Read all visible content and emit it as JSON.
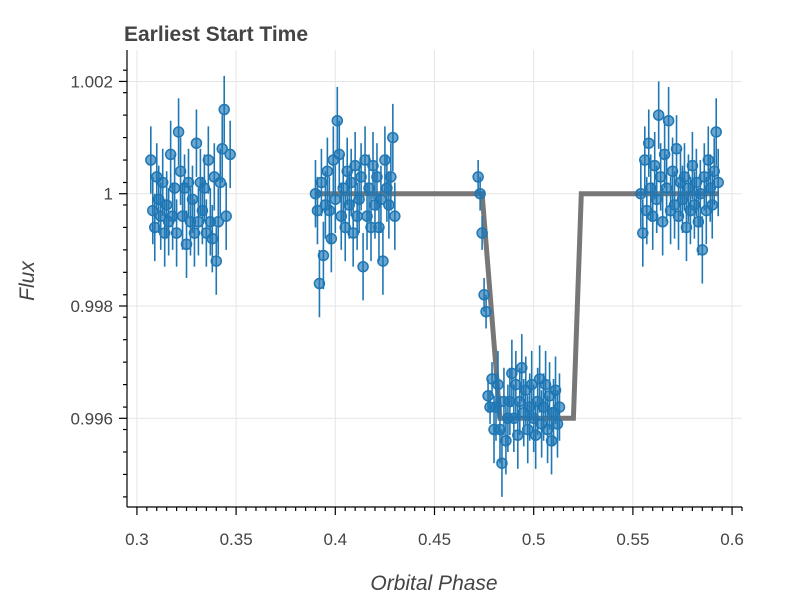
{
  "chart_data": {
    "type": "scatter",
    "title": "Earliest Start Time",
    "xlabel": "Orbital Phase",
    "ylabel": "Flux",
    "xlim": [
      0.295,
      0.605
    ],
    "ylim": [
      0.99442,
      1.00256
    ],
    "grid": true,
    "x_ticks": [
      0.3,
      0.35,
      0.4,
      0.45,
      0.5,
      0.55,
      0.6
    ],
    "x_tick_labels": [
      "0.3",
      "0.35",
      "0.4",
      "0.45",
      "0.5",
      "0.55",
      "0.6"
    ],
    "y_ticks": [
      0.996,
      0.998,
      1.0,
      1.002
    ],
    "y_tick_labels": [
      "0.996",
      "0.998",
      "1",
      "1.002"
    ],
    "colors": {
      "points": "#1f77b4",
      "model": "#777777",
      "grid": "#e5e5e5"
    },
    "series": [
      {
        "type": "errorbar",
        "points": [
          [
            0.307,
            1.0006,
            0.0006
          ],
          [
            0.308,
            0.9997,
            0.0006
          ],
          [
            0.309,
            0.9994,
            0.0006
          ],
          [
            0.31,
            1.0003,
            0.0006
          ],
          [
            0.311,
            0.9999,
            0.0006
          ],
          [
            0.312,
            0.9996,
            0.0006
          ],
          [
            0.313,
            1.0002,
            0.0006
          ],
          [
            0.314,
            0.9993,
            0.0006
          ],
          [
            0.315,
            0.9998,
            0.0006
          ],
          [
            0.316,
            0.9995,
            0.0006
          ],
          [
            0.317,
            1.0007,
            0.0006
          ],
          [
            0.318,
            0.9996,
            0.0006
          ],
          [
            0.319,
            1.0001,
            0.0006
          ],
          [
            0.32,
            0.9993,
            0.0006
          ],
          [
            0.321,
            1.0011,
            0.0006
          ],
          [
            0.322,
            1.0004,
            0.0006
          ],
          [
            0.323,
            0.9996,
            0.0006
          ],
          [
            0.324,
            1.0001,
            0.0006
          ],
          [
            0.325,
            0.9991,
            0.0006
          ],
          [
            0.326,
            1.0002,
            0.0006
          ],
          [
            0.327,
            0.9995,
            0.0006
          ],
          [
            0.328,
            0.9999,
            0.0006
          ],
          [
            0.329,
            0.9993,
            0.0006
          ],
          [
            0.33,
            1.0009,
            0.0006
          ],
          [
            0.331,
            0.9995,
            0.0006
          ],
          [
            0.332,
            1.0002,
            0.0006
          ],
          [
            0.333,
            0.9997,
            0.0006
          ],
          [
            0.334,
            1.0001,
            0.0006
          ],
          [
            0.335,
            0.9993,
            0.0006
          ],
          [
            0.336,
            1.0006,
            0.0006
          ],
          [
            0.337,
            0.9995,
            0.0006
          ],
          [
            0.338,
            0.9992,
            0.0006
          ],
          [
            0.339,
            1.0003,
            0.0006
          ],
          [
            0.34,
            0.9988,
            0.0006
          ],
          [
            0.341,
            0.9995,
            0.0006
          ],
          [
            0.342,
            1.0002,
            0.0006
          ],
          [
            0.343,
            1.0008,
            0.0006
          ],
          [
            0.344,
            1.0015,
            0.0006
          ],
          [
            0.345,
            0.9996,
            0.0006
          ],
          [
            0.347,
            1.0007,
            0.0006
          ],
          [
            0.39,
            1.0,
            0.0006
          ],
          [
            0.391,
            0.9997,
            0.0006
          ],
          [
            0.392,
            0.9984,
            0.0006
          ],
          [
            0.393,
            1.0002,
            0.0006
          ],
          [
            0.394,
            0.9989,
            0.0006
          ],
          [
            0.395,
            0.9998,
            0.0006
          ],
          [
            0.396,
            1.0004,
            0.0006
          ],
          [
            0.397,
            0.9997,
            0.0006
          ],
          [
            0.398,
            0.9992,
            0.0006
          ],
          [
            0.399,
            1.0006,
            0.0006
          ],
          [
            0.4,
            0.9999,
            0.0006
          ],
          [
            0.401,
            1.0013,
            0.0006
          ],
          [
            0.402,
            1.0007,
            0.0006
          ],
          [
            0.403,
            0.9996,
            0.0006
          ],
          [
            0.404,
            1.0001,
            0.0006
          ],
          [
            0.405,
            0.9994,
            0.0006
          ],
          [
            0.406,
            1.0004,
            0.0006
          ],
          [
            0.407,
            0.9998,
            0.0006
          ],
          [
            0.408,
            1.0002,
            0.0006
          ],
          [
            0.409,
            0.9993,
            0.0006
          ],
          [
            0.41,
            1.0005,
            0.0006
          ],
          [
            0.411,
            0.9996,
            0.0006
          ],
          [
            0.412,
            0.9999,
            0.0006
          ],
          [
            0.413,
            1.0003,
            0.0006
          ],
          [
            0.414,
            0.9987,
            0.0006
          ],
          [
            0.415,
            1.0006,
            0.0006
          ],
          [
            0.416,
            0.9996,
            0.0006
          ],
          [
            0.417,
            1.0001,
            0.0006
          ],
          [
            0.418,
            0.9994,
            0.0006
          ],
          [
            0.419,
            1.0005,
            0.0006
          ],
          [
            0.42,
            0.9998,
            0.0006
          ],
          [
            0.421,
            1.0003,
            0.0006
          ],
          [
            0.422,
            0.9994,
            0.0006
          ],
          [
            0.423,
            0.9999,
            0.0006
          ],
          [
            0.424,
            0.9988,
            0.0006
          ],
          [
            0.425,
            1.0006,
            0.0006
          ],
          [
            0.426,
            1.0001,
            0.0006
          ],
          [
            0.427,
            0.9998,
            0.0006
          ],
          [
            0.428,
            1.0003,
            0.0006
          ],
          [
            0.429,
            1.001,
            0.0006
          ],
          [
            0.43,
            0.9996,
            0.0006
          ],
          [
            0.472,
            1.0003,
            0.0003
          ],
          [
            0.473,
            1.0,
            0.0003
          ],
          [
            0.474,
            0.9993,
            0.0003
          ],
          [
            0.475,
            0.9982,
            0.0003
          ],
          [
            0.476,
            0.9979,
            0.0003
          ],
          [
            0.477,
            0.9964,
            0.0003
          ],
          [
            0.478,
            0.9962,
            0.0003
          ],
          [
            0.479,
            0.9967,
            0.0003
          ],
          [
            0.48,
            0.9958,
            0.0006
          ],
          [
            0.481,
            0.9962,
            0.0006
          ],
          [
            0.482,
            0.9966,
            0.0006
          ],
          [
            0.483,
            0.9958,
            0.0006
          ],
          [
            0.484,
            0.9952,
            0.0006
          ],
          [
            0.485,
            0.9963,
            0.0006
          ],
          [
            0.486,
            0.9956,
            0.0006
          ],
          [
            0.487,
            0.996,
            0.0006
          ],
          [
            0.488,
            0.9963,
            0.0006
          ],
          [
            0.489,
            0.9968,
            0.0006
          ],
          [
            0.49,
            0.996,
            0.0006
          ],
          [
            0.491,
            0.9966,
            0.0006
          ],
          [
            0.492,
            0.9957,
            0.0006
          ],
          [
            0.493,
            0.9963,
            0.0006
          ],
          [
            0.494,
            0.9969,
            0.0006
          ],
          [
            0.495,
            0.9961,
            0.0006
          ],
          [
            0.496,
            0.9965,
            0.0006
          ],
          [
            0.497,
            0.9958,
            0.0006
          ],
          [
            0.498,
            0.9962,
            0.0006
          ],
          [
            0.499,
            0.9966,
            0.0006
          ],
          [
            0.5,
            0.996,
            0.0006
          ],
          [
            0.501,
            0.9957,
            0.0006
          ],
          [
            0.502,
            0.9963,
            0.0006
          ],
          [
            0.503,
            0.9967,
            0.0006
          ],
          [
            0.504,
            0.9959,
            0.0006
          ],
          [
            0.505,
            0.9962,
            0.0006
          ],
          [
            0.506,
            0.9966,
            0.0006
          ],
          [
            0.507,
            0.9958,
            0.0006
          ],
          [
            0.508,
            0.9964,
            0.0006
          ],
          [
            0.509,
            0.9956,
            0.0006
          ],
          [
            0.51,
            0.9961,
            0.0006
          ],
          [
            0.511,
            0.9965,
            0.0006
          ],
          [
            0.512,
            0.9959,
            0.0006
          ],
          [
            0.513,
            0.9962,
            0.0006
          ],
          [
            0.554,
            1.0,
            0.0006
          ],
          [
            0.555,
            0.9993,
            0.0006
          ],
          [
            0.556,
            1.0006,
            0.0006
          ],
          [
            0.557,
            0.9997,
            0.0006
          ],
          [
            0.558,
            1.0009,
            0.0006
          ],
          [
            0.559,
            1.0001,
            0.0006
          ],
          [
            0.56,
            0.9996,
            0.0006
          ],
          [
            0.561,
            1.0005,
            0.0006
          ],
          [
            0.562,
            0.9999,
            0.0006
          ],
          [
            0.563,
            1.0014,
            0.0006
          ],
          [
            0.564,
            1.0003,
            0.0006
          ],
          [
            0.565,
            0.9995,
            0.0006
          ],
          [
            0.566,
            1.0007,
            0.0006
          ],
          [
            0.567,
            1.0001,
            0.0006
          ],
          [
            0.568,
            1.0013,
            0.0006
          ],
          [
            0.569,
            0.9997,
            0.0006
          ],
          [
            0.57,
            1.0004,
            0.0006
          ],
          [
            0.571,
            0.9998,
            0.0006
          ],
          [
            0.572,
            1.0008,
            0.0006
          ],
          [
            0.573,
            0.9996,
            0.0006
          ],
          [
            0.574,
            1.0002,
            0.0006
          ],
          [
            0.575,
            0.9999,
            0.0006
          ],
          [
            0.576,
            1.0003,
            0.0006
          ],
          [
            0.577,
            0.9994,
            0.0006
          ],
          [
            0.578,
            1.0001,
            0.0006
          ],
          [
            0.579,
            0.9997,
            0.0006
          ],
          [
            0.58,
            1.0005,
            0.0006
          ],
          [
            0.581,
            0.9998,
            0.0006
          ],
          [
            0.582,
            1.0002,
            0.0006
          ],
          [
            0.583,
            0.9995,
            0.0006
          ],
          [
            0.584,
            1.0,
            0.0006
          ],
          [
            0.585,
            0.999,
            0.0006
          ],
          [
            0.586,
            1.0003,
            0.0006
          ],
          [
            0.587,
            0.9997,
            0.0006
          ],
          [
            0.588,
            1.0006,
            0.0006
          ],
          [
            0.589,
            1.0001,
            0.0006
          ],
          [
            0.59,
            0.9998,
            0.0006
          ],
          [
            0.591,
            1.0004,
            0.0006
          ],
          [
            0.592,
            1.0011,
            0.0006
          ],
          [
            0.593,
            1.0002,
            0.0006
          ]
        ]
      },
      {
        "type": "line",
        "x": [
          0.39,
          0.474,
          0.483,
          0.52,
          0.524,
          0.593
        ],
        "y": [
          1.0,
          1.0,
          0.996,
          0.996,
          1.0,
          1.0
        ]
      }
    ]
  }
}
